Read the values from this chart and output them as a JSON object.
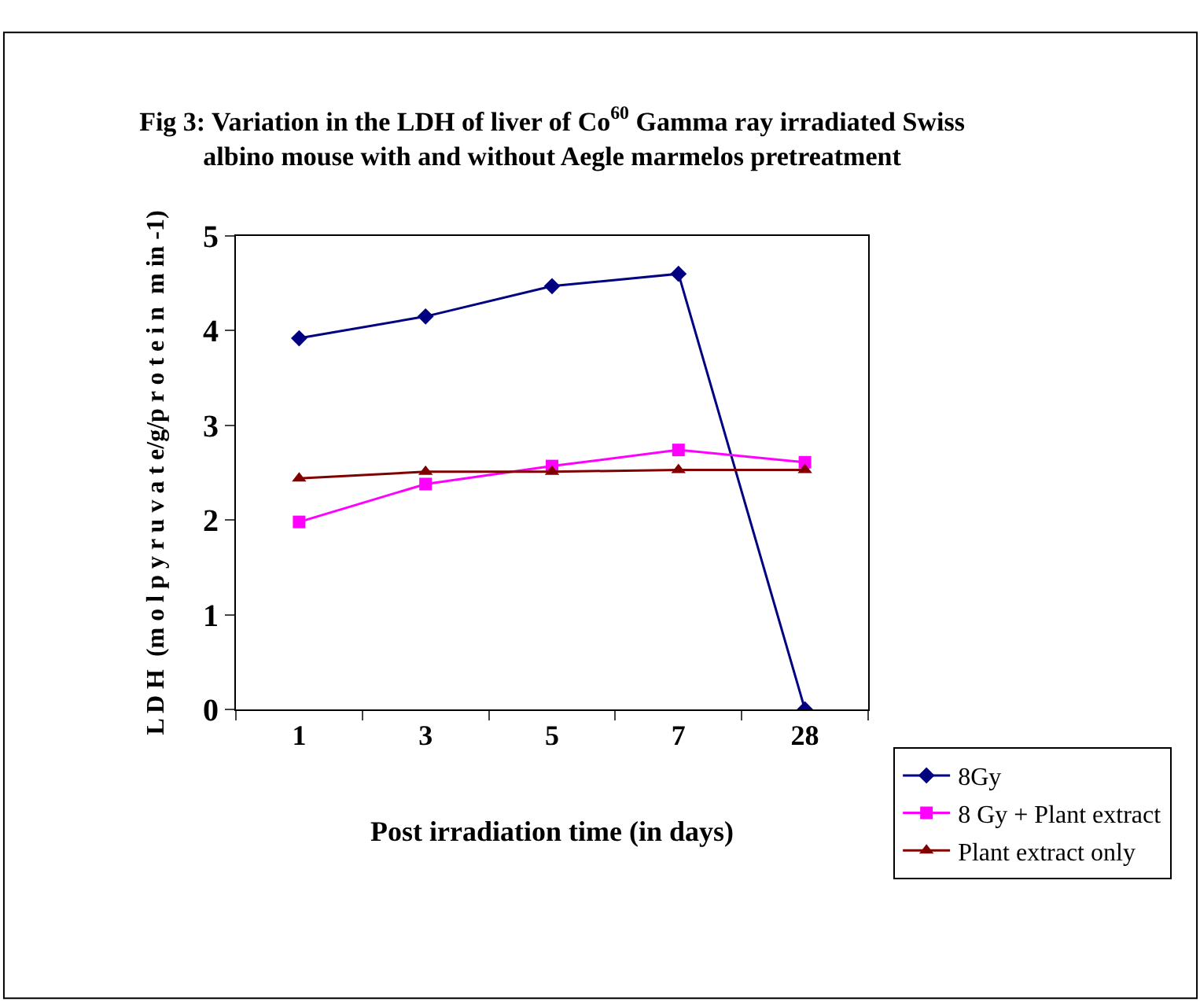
{
  "chart_data": {
    "type": "line",
    "title": "Fig 3: Variation in the LDH of liver of Co$^{60}$ Gamma ray irradiated Swiss albino mouse with and without Aegle marmelos pretreatment",
    "xlabel": "Post irradiation time (in days)",
    "ylabel": "L D H  (m o l p y r u v a t e/g/p r o t e i n  m in -1)",
    "categories": [
      "1",
      "3",
      "5",
      "7",
      "28"
    ],
    "series": [
      {
        "name": "8Gy",
        "color": "#000080",
        "marker": "diamond",
        "values": [
          3.92,
          4.15,
          4.47,
          4.6,
          0
        ]
      },
      {
        "name": "8 Gy + Plant extract",
        "color": "#ff00ff",
        "marker": "square",
        "values": [
          1.98,
          2.38,
          2.57,
          2.74,
          2.61
        ]
      },
      {
        "name": "Plant extract only",
        "color": "#800000",
        "marker": "triangle",
        "values": [
          2.44,
          2.51,
          2.51,
          2.53,
          2.53
        ]
      }
    ],
    "ylim": [
      0,
      5
    ],
    "yticks": [
      0,
      1,
      2,
      3,
      4,
      5
    ],
    "grid": false,
    "legend": "bottom right",
    "line_style": "solid"
  }
}
